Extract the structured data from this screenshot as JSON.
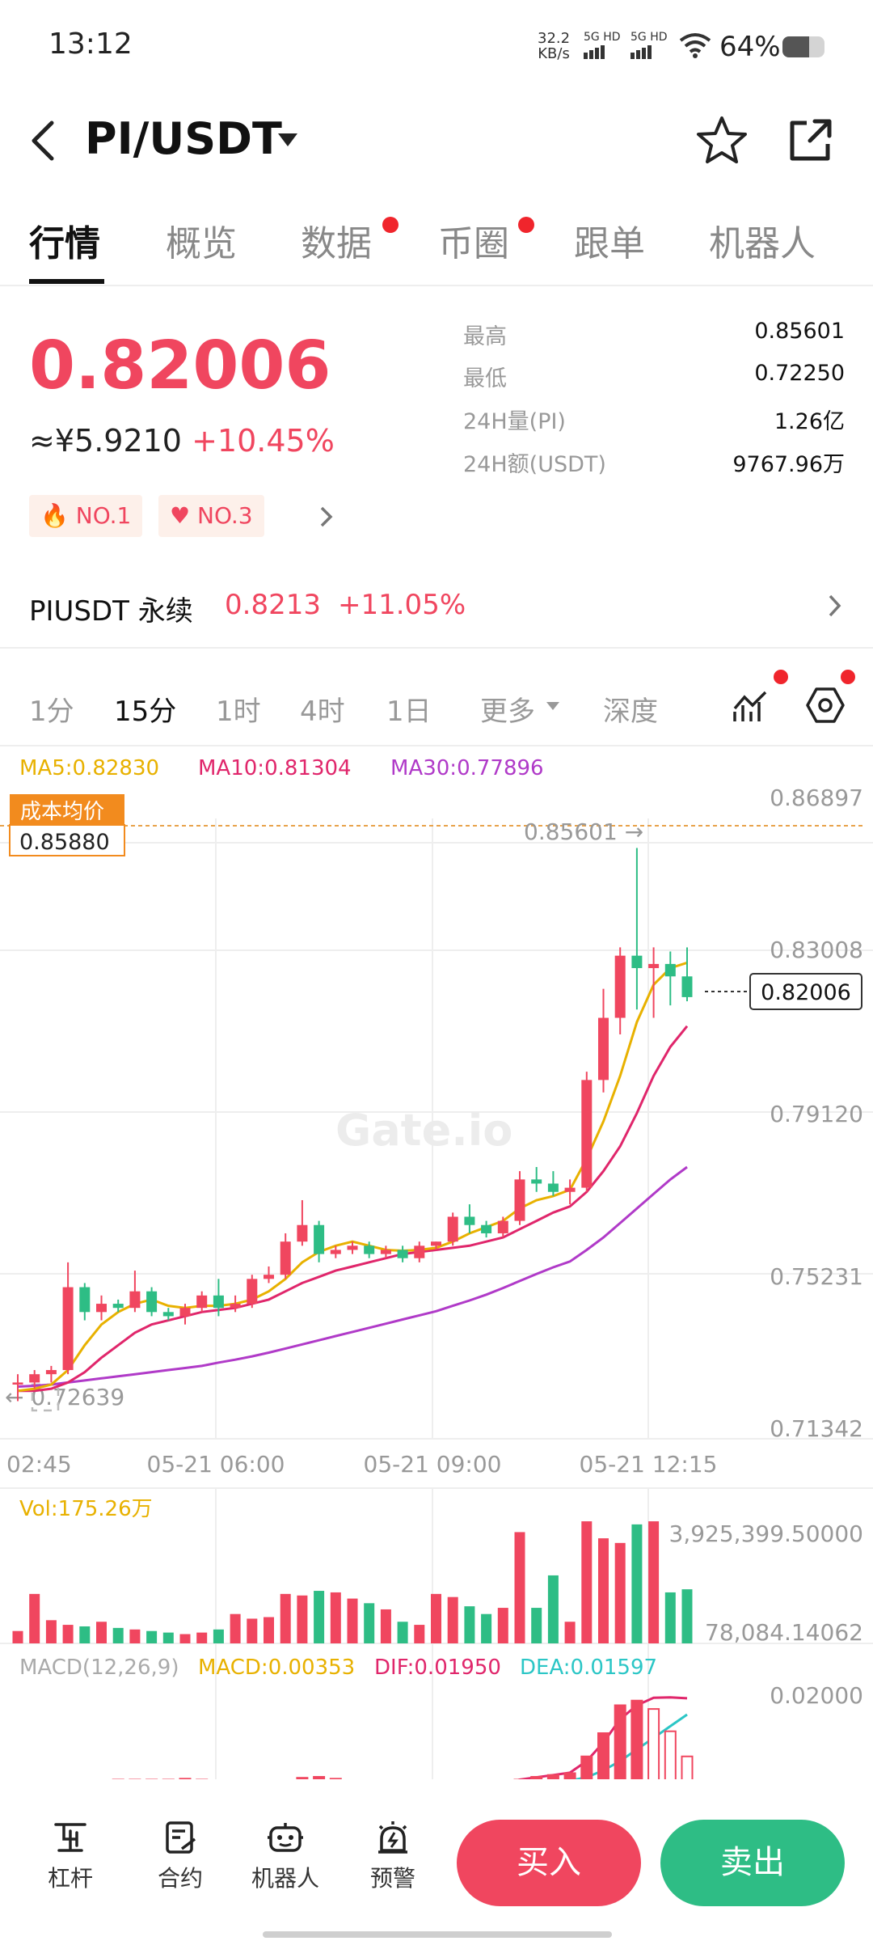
{
  "status_bar": {
    "time": "13:12",
    "net_speed_value": "32.2",
    "net_speed_unit": "KB/s",
    "sim1": "5G HD",
    "sim2": "5G HD",
    "battery": "64%",
    "battery_level": 0.64
  },
  "header": {
    "pair": "PI/USDT",
    "dropdown_icon": "caret-down-icon",
    "back_icon": "back-arrow-icon",
    "favorite_icon": "star-outline-icon",
    "share_icon": "share-icon"
  },
  "tabs": [
    {
      "label": "行情",
      "active": true,
      "dot": false
    },
    {
      "label": "概览",
      "active": false,
      "dot": false
    },
    {
      "label": "数据",
      "active": false,
      "dot": true
    },
    {
      "label": "币圈",
      "active": false,
      "dot": true
    },
    {
      "label": "跟单",
      "active": false,
      "dot": false
    },
    {
      "label": "机器人",
      "active": false,
      "dot": false
    }
  ],
  "price": {
    "last": "0.82006",
    "cny": "≈¥5.9210",
    "change": "+10.45%",
    "stats": [
      {
        "label": "最高",
        "value": "0.85601"
      },
      {
        "label": "最低",
        "value": "0.72250"
      },
      {
        "label": "24H量(PI)",
        "value": "1.26亿"
      },
      {
        "label": "24H额(USDT)",
        "value": "9767.96万"
      }
    ],
    "badges": [
      "NO.1",
      "NO.3"
    ]
  },
  "perpetual": {
    "name": "PIUSDT 永续",
    "price": "0.8213",
    "change": "+11.05%"
  },
  "intervals": {
    "items": [
      "1分",
      "15分",
      "1时",
      "4时",
      "1日",
      "更多",
      "深度"
    ],
    "active": "15分"
  },
  "main_chart": {
    "ma5_label": "MA5:0.82830",
    "ma10_label": "MA10:0.81304",
    "ma30_label": "MA30:0.77896",
    "cost_label": "成本均价",
    "cost_value": "0.85880",
    "high_marker": "0.85601 →",
    "low_marker": "← 0.72639",
    "current_price_tag": "0.82006",
    "watermark": "Gate.io",
    "y_ticks": [
      "0.86897",
      "0.83008",
      "0.79120",
      "0.75231",
      "0.71342"
    ],
    "x_ticks": [
      "02:45",
      "05-21 06:00",
      "05-21 09:00",
      "05-21 12:15"
    ]
  },
  "volume_chart": {
    "label": "Vol:175.26万",
    "y_ticks": [
      "3,925,399.50000",
      "78,084.14062"
    ]
  },
  "macd_chart": {
    "label": "MACD(12,26,9)",
    "macd": "MACD:0.00353",
    "dif": "DIF:0.01950",
    "dea": "DEA:0.01597",
    "y_tick": "0.02000"
  },
  "colors": {
    "up": "#f0465f",
    "down": "#2ebd85",
    "ma5": "#e8b100",
    "ma10": "#e0266b",
    "ma30": "#b03ac8",
    "dea": "#2bc6c6"
  },
  "chart_data": {
    "type": "candlestick",
    "interval": "15分",
    "y_range": [
      0.71342,
      0.86897
    ],
    "candles": [
      {
        "o": 0.7265,
        "h": 0.729,
        "l": 0.7225,
        "c": 0.727
      },
      {
        "o": 0.727,
        "h": 0.73,
        "l": 0.7255,
        "c": 0.729
      },
      {
        "o": 0.729,
        "h": 0.731,
        "l": 0.727,
        "c": 0.73
      },
      {
        "o": 0.73,
        "h": 0.756,
        "l": 0.729,
        "c": 0.75
      },
      {
        "o": 0.75,
        "h": 0.751,
        "l": 0.742,
        "c": 0.744
      },
      {
        "o": 0.744,
        "h": 0.748,
        "l": 0.742,
        "c": 0.746
      },
      {
        "o": 0.746,
        "h": 0.747,
        "l": 0.744,
        "c": 0.745
      },
      {
        "o": 0.745,
        "h": 0.754,
        "l": 0.744,
        "c": 0.749
      },
      {
        "o": 0.749,
        "h": 0.75,
        "l": 0.743,
        "c": 0.744
      },
      {
        "o": 0.744,
        "h": 0.745,
        "l": 0.742,
        "c": 0.743
      },
      {
        "o": 0.743,
        "h": 0.746,
        "l": 0.741,
        "c": 0.745
      },
      {
        "o": 0.745,
        "h": 0.749,
        "l": 0.744,
        "c": 0.748
      },
      {
        "o": 0.748,
        "h": 0.752,
        "l": 0.743,
        "c": 0.745
      },
      {
        "o": 0.745,
        "h": 0.748,
        "l": 0.744,
        "c": 0.746
      },
      {
        "o": 0.746,
        "h": 0.753,
        "l": 0.745,
        "c": 0.752
      },
      {
        "o": 0.752,
        "h": 0.755,
        "l": 0.751,
        "c": 0.753
      },
      {
        "o": 0.753,
        "h": 0.763,
        "l": 0.752,
        "c": 0.761
      },
      {
        "o": 0.761,
        "h": 0.771,
        "l": 0.76,
        "c": 0.765
      },
      {
        "o": 0.765,
        "h": 0.766,
        "l": 0.756,
        "c": 0.758
      },
      {
        "o": 0.758,
        "h": 0.76,
        "l": 0.757,
        "c": 0.759
      },
      {
        "o": 0.759,
        "h": 0.761,
        "l": 0.758,
        "c": 0.76
      },
      {
        "o": 0.76,
        "h": 0.761,
        "l": 0.757,
        "c": 0.758
      },
      {
        "o": 0.758,
        "h": 0.76,
        "l": 0.757,
        "c": 0.759
      },
      {
        "o": 0.759,
        "h": 0.76,
        "l": 0.756,
        "c": 0.757
      },
      {
        "o": 0.757,
        "h": 0.761,
        "l": 0.756,
        "c": 0.76
      },
      {
        "o": 0.76,
        "h": 0.761,
        "l": 0.759,
        "c": 0.761
      },
      {
        "o": 0.761,
        "h": 0.768,
        "l": 0.76,
        "c": 0.767
      },
      {
        "o": 0.767,
        "h": 0.77,
        "l": 0.763,
        "c": 0.765
      },
      {
        "o": 0.765,
        "h": 0.766,
        "l": 0.762,
        "c": 0.763
      },
      {
        "o": 0.763,
        "h": 0.767,
        "l": 0.762,
        "c": 0.766
      },
      {
        "o": 0.766,
        "h": 0.778,
        "l": 0.765,
        "c": 0.776
      },
      {
        "o": 0.776,
        "h": 0.779,
        "l": 0.773,
        "c": 0.775
      },
      {
        "o": 0.775,
        "h": 0.778,
        "l": 0.772,
        "c": 0.773
      },
      {
        "o": 0.773,
        "h": 0.776,
        "l": 0.77,
        "c": 0.774
      },
      {
        "o": 0.774,
        "h": 0.802,
        "l": 0.773,
        "c": 0.8
      },
      {
        "o": 0.8,
        "h": 0.822,
        "l": 0.797,
        "c": 0.815
      },
      {
        "o": 0.815,
        "h": 0.832,
        "l": 0.811,
        "c": 0.83
      },
      {
        "o": 0.83,
        "h": 0.856,
        "l": 0.817,
        "c": 0.827
      },
      {
        "o": 0.827,
        "h": 0.832,
        "l": 0.815,
        "c": 0.828
      },
      {
        "o": 0.828,
        "h": 0.831,
        "l": 0.818,
        "c": 0.825
      },
      {
        "o": 0.825,
        "h": 0.832,
        "l": 0.819,
        "c": 0.82
      }
    ],
    "ma5": [
      0.725,
      0.7255,
      0.7265,
      0.73,
      0.736,
      0.741,
      0.744,
      0.746,
      0.747,
      0.7455,
      0.745,
      0.7455,
      0.7455,
      0.746,
      0.747,
      0.749,
      0.752,
      0.756,
      0.7585,
      0.76,
      0.761,
      0.76,
      0.759,
      0.7588,
      0.759,
      0.7595,
      0.761,
      0.763,
      0.7645,
      0.766,
      0.769,
      0.771,
      0.772,
      0.7735,
      0.781,
      0.79,
      0.801,
      0.814,
      0.823,
      0.827,
      0.8283
    ],
    "ma10": [
      0.725,
      0.725,
      0.7255,
      0.727,
      0.7295,
      0.733,
      0.736,
      0.739,
      0.741,
      0.742,
      0.743,
      0.744,
      0.7445,
      0.745,
      0.746,
      0.747,
      0.749,
      0.751,
      0.7525,
      0.754,
      0.755,
      0.756,
      0.757,
      0.758,
      0.7585,
      0.759,
      0.7595,
      0.76,
      0.761,
      0.762,
      0.764,
      0.766,
      0.768,
      0.7695,
      0.773,
      0.778,
      0.784,
      0.792,
      0.801,
      0.808,
      0.813
    ],
    "ma30": [
      0.726,
      0.7262,
      0.7265,
      0.727,
      0.7275,
      0.728,
      0.7285,
      0.729,
      0.7295,
      0.73,
      0.7305,
      0.731,
      0.7318,
      0.7325,
      0.7333,
      0.7342,
      0.7352,
      0.7362,
      0.7372,
      0.7382,
      0.7392,
      0.7402,
      0.7412,
      0.7422,
      0.7432,
      0.7442,
      0.7455,
      0.7468,
      0.7482,
      0.7498,
      0.7515,
      0.7532,
      0.7548,
      0.7562,
      0.759,
      0.762,
      0.7655,
      0.769,
      0.7725,
      0.776,
      0.779
    ],
    "volume": [
      400000,
      1600000,
      750000,
      600000,
      550000,
      700000,
      500000,
      450000,
      400000,
      350000,
      300000,
      350000,
      450000,
      950000,
      800000,
      850000,
      1600000,
      1550000,
      1700000,
      1650000,
      1450000,
      1300000,
      1100000,
      700000,
      600000,
      1600000,
      1500000,
      1200000,
      950000,
      1150000,
      3600000,
      1150000,
      2200000,
      700000,
      3950000,
      3400000,
      3250000,
      3850000,
      3950000,
      1650000,
      1750000
    ],
    "volume_range": [
      78084.14062,
      3925399.5
    ],
    "macd_dif": [
      -0.006,
      -0.0058,
      -0.0055,
      -0.005,
      -0.0045,
      -0.004,
      -0.0035,
      -0.003,
      -0.0025,
      -0.002,
      -0.0015,
      -0.0012,
      -0.001,
      -0.0008,
      -0.0005,
      -0.0003,
      0.0,
      0.001,
      0.0015,
      0.0016,
      0.0015,
      0.0012,
      0.001,
      0.0008,
      0.0008,
      0.0008,
      0.001,
      0.001,
      0.001,
      0.0012,
      0.002,
      0.0025,
      0.003,
      0.0035,
      0.006,
      0.01,
      0.015,
      0.018,
      0.0196,
      0.0197,
      0.0195
    ],
    "macd_dea": [
      -0.0065,
      -0.0063,
      -0.006,
      -0.0057,
      -0.0053,
      -0.0049,
      -0.0045,
      -0.004,
      -0.0035,
      -0.003,
      -0.0026,
      -0.0022,
      -0.0018,
      -0.0015,
      -0.0012,
      -0.0009,
      -0.0006,
      -0.0002,
      0.0002,
      0.0005,
      0.0006,
      0.0006,
      0.0006,
      0.0006,
      0.0006,
      0.0006,
      0.0007,
      0.0007,
      0.0008,
      0.0008,
      0.001,
      0.0012,
      0.0015,
      0.0018,
      0.0025,
      0.004,
      0.006,
      0.0085,
      0.011,
      0.0135,
      0.016
    ],
    "macd_y_top": 0.02
  }
}
